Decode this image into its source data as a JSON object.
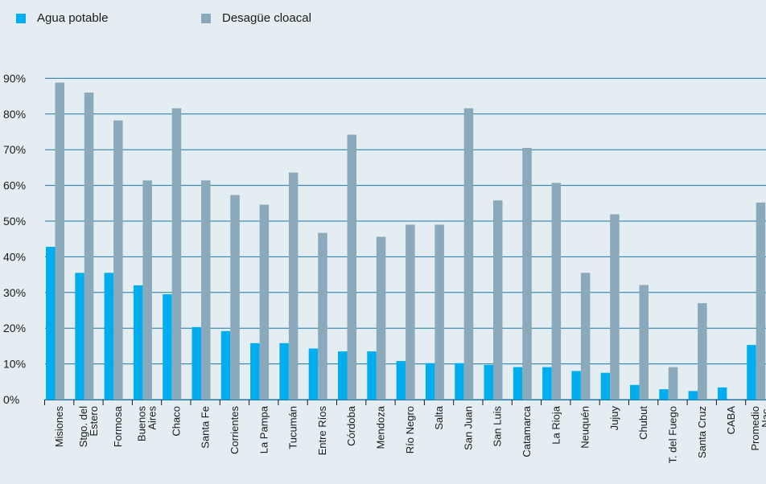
{
  "chart_data": {
    "type": "bar",
    "categories": [
      [
        "Misiones"
      ],
      [
        "Stgo. del",
        "Estero"
      ],
      [
        "Formosa"
      ],
      [
        "Buenos",
        "Aires"
      ],
      [
        "Chaco"
      ],
      [
        "Santa Fe"
      ],
      [
        "Corrientes"
      ],
      [
        "La Pampa"
      ],
      [
        "Tucumán"
      ],
      [
        "Entre Ríos"
      ],
      [
        "Córdoba"
      ],
      [
        "Mendoza"
      ],
      [
        "Río Negro"
      ],
      [
        "Salta"
      ],
      [
        "San Juan"
      ],
      [
        "San Luis"
      ],
      [
        "Catamarca"
      ],
      [
        "La Rioja"
      ],
      [
        "Neuquén"
      ],
      [
        "Jujuy"
      ],
      [
        "Chubut"
      ],
      [
        "T. del Fuego"
      ],
      [
        "Santa Cruz"
      ],
      [
        "CABA"
      ],
      [
        "Promedio",
        "Nac."
      ]
    ],
    "series": [
      {
        "name": "Agua potable",
        "color": "#00aeef",
        "values": [
          42.8,
          35.5,
          35.5,
          32,
          29.5,
          20.3,
          19.2,
          15.8,
          15.8,
          14.3,
          13.5,
          13.5,
          10.8,
          10.2,
          10.2,
          9.7,
          9.1,
          9.1,
          8,
          7.5,
          4.1,
          2.9,
          2.4,
          3.4,
          15.3
        ]
      },
      {
        "name": "Desagüe cloacal",
        "color": "#8aa9ba",
        "values": [
          88.8,
          86,
          78.2,
          61.4,
          81.6,
          61.4,
          57.3,
          54.6,
          63.6,
          46.7,
          74.2,
          45.6,
          49,
          49,
          81.6,
          55.8,
          70.5,
          60.7,
          35.5,
          51.9,
          32.1,
          9.1,
          27,
          0,
          55.2
        ]
      }
    ],
    "ylim": [
      0,
      100
    ],
    "yticks": [
      "0%",
      "10%",
      "20%",
      "30%",
      "40%",
      "50%",
      "60%",
      "70%",
      "80%",
      "90%"
    ],
    "grid": true,
    "gridline_color": "#1f76a3",
    "legend_position": "top-left"
  }
}
